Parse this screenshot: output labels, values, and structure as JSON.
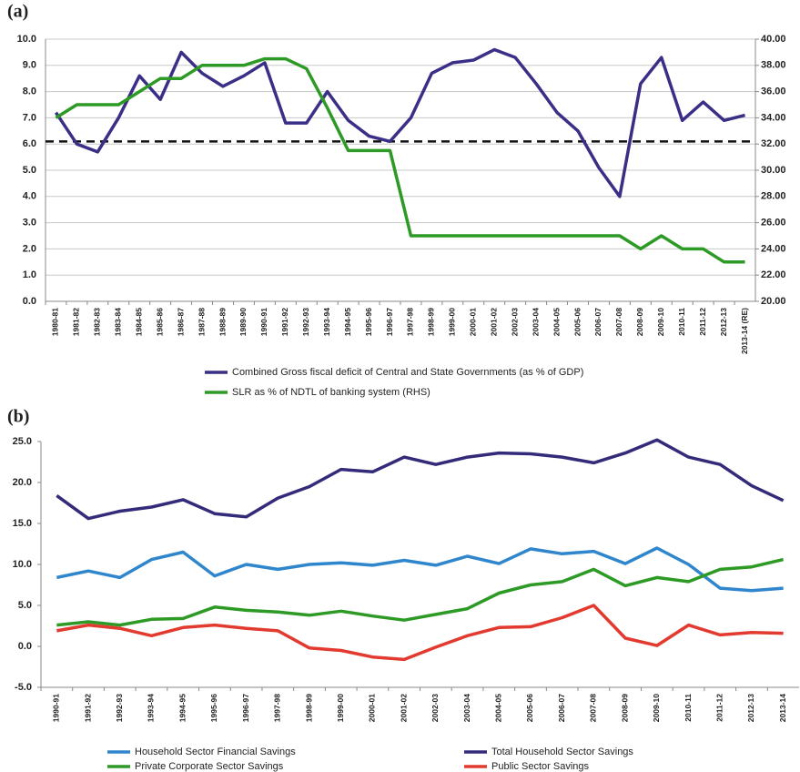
{
  "chart_data": [
    {
      "type": "line",
      "panel_label": "(a)",
      "categories": [
        "1980-81",
        "1981-82",
        "1982-83",
        "1983-84",
        "1984-85",
        "1985-86",
        "1986-87",
        "1987-88",
        "1988-89",
        "1989-90",
        "1990-91",
        "1991-92",
        "1992-93",
        "1993-94",
        "1994-95",
        "1995-96",
        "1996-97",
        "1997-98",
        "1998-99",
        "1999-00",
        "2000-01",
        "2001-02",
        "2002-03",
        "2003-04",
        "2004-05",
        "2005-06",
        "2006-07",
        "2007-08",
        "2008-09",
        "2009-10",
        "2010-11",
        "2011-12",
        "2012-13",
        "2013-14 (RE)"
      ],
      "series": [
        {
          "name": "Combined Gross fiscal deficit of Central and State Governments (as % of GDP)",
          "color": "#3a2f86",
          "values": [
            7.2,
            6.0,
            5.7,
            7.0,
            8.6,
            7.7,
            9.5,
            8.7,
            8.2,
            8.6,
            9.1,
            6.8,
            6.8,
            8.0,
            6.9,
            6.3,
            6.1,
            7.0,
            8.7,
            9.1,
            9.2,
            9.6,
            9.3,
            8.3,
            7.2,
            6.5,
            5.1,
            4.0,
            8.3,
            9.3,
            6.9,
            7.6,
            6.9,
            7.1
          ]
        },
        {
          "name": "SLR as % of NDTL of banking system (RHS)",
          "color": "#2e9a26",
          "axis": "y2",
          "values": [
            34,
            35,
            35,
            35,
            36,
            37,
            37,
            38,
            38,
            38,
            38.5,
            38.5,
            37.75,
            34.75,
            31.5,
            31.5,
            31.5,
            25,
            25,
            25,
            25,
            25,
            25,
            25,
            25,
            25,
            25,
            25,
            24,
            25,
            24,
            24,
            23,
            23
          ]
        }
      ],
      "hline": 6.1,
      "ylim": [
        0,
        10
      ],
      "yticks": [
        {
          "value": 0,
          "label": "0.0"
        },
        {
          "value": 1,
          "label": "1.0"
        },
        {
          "value": 2,
          "label": "2.0"
        },
        {
          "value": 3,
          "label": "3.0"
        },
        {
          "value": 4,
          "label": "4.0"
        },
        {
          "value": 5,
          "label": "5.0"
        },
        {
          "value": 6,
          "label": "6.0"
        },
        {
          "value": 7,
          "label": "7.0"
        },
        {
          "value": 8,
          "label": "8.0"
        },
        {
          "value": 9,
          "label": "9.0"
        },
        {
          "value": 10,
          "label": "10.0"
        }
      ],
      "y2lim": [
        20,
        40
      ],
      "y2ticks": [
        {
          "value": 20,
          "label": "20.00"
        },
        {
          "value": 22,
          "label": "22.00"
        },
        {
          "value": 24,
          "label": "24.00"
        },
        {
          "value": 26,
          "label": "26.00"
        },
        {
          "value": 28,
          "label": "28.00"
        },
        {
          "value": 30,
          "label": "30.00"
        },
        {
          "value": 32,
          "label": "32.00"
        },
        {
          "value": 34,
          "label": "34.00"
        },
        {
          "value": 36,
          "label": "36.00"
        },
        {
          "value": 38,
          "label": "38.00"
        },
        {
          "value": 40,
          "label": "40.00"
        }
      ],
      "grid": true
    },
    {
      "type": "line",
      "panel_label": "(b)",
      "categories": [
        "1990-91",
        "1991-92",
        "1992-93",
        "1993-94",
        "1994-95",
        "1995-96",
        "1996-97",
        "1997-98",
        "1998-99",
        "1999-00",
        "2000-01",
        "2001-02",
        "2002-03",
        "2003-04",
        "2004-05",
        "2005-06",
        "2006-07",
        "2007-08",
        "2008-09",
        "2009-10",
        "2010-11",
        "2011-12",
        "2012-13",
        "2013-14"
      ],
      "series": [
        {
          "name": "Household Sector Financial Savings",
          "color": "#2f86cc",
          "values": [
            8.4,
            9.2,
            8.4,
            10.6,
            11.5,
            8.6,
            10.0,
            9.4,
            10.0,
            10.2,
            9.9,
            10.5,
            9.9,
            11.0,
            10.1,
            11.9,
            11.3,
            11.6,
            10.1,
            12.0,
            10.0,
            7.1,
            6.8,
            7.1
          ]
        },
        {
          "name": "Total Household Sector Savings",
          "color": "#332a7a",
          "values": [
            18.4,
            15.6,
            16.5,
            17.0,
            17.9,
            16.2,
            15.8,
            18.1,
            19.5,
            21.6,
            21.3,
            23.1,
            22.2,
            23.1,
            23.6,
            23.5,
            23.1,
            22.4,
            23.6,
            25.2,
            23.1,
            22.2,
            19.6,
            17.8
          ]
        },
        {
          "name": "Private Corporate Sector Savings",
          "color": "#2e9a26",
          "values": [
            2.6,
            3.0,
            2.6,
            3.3,
            3.4,
            4.8,
            4.4,
            4.2,
            3.8,
            4.3,
            3.7,
            3.2,
            3.9,
            4.6,
            6.5,
            7.5,
            7.9,
            9.4,
            7.4,
            8.4,
            7.9,
            9.4,
            9.7,
            10.6
          ]
        },
        {
          "name": "Public Sector Savings",
          "color": "#e23a2e",
          "values": [
            1.9,
            2.6,
            2.2,
            1.3,
            2.3,
            2.6,
            2.2,
            1.9,
            -0.2,
            -0.5,
            -1.3,
            -1.6,
            -0.1,
            1.3,
            2.3,
            2.4,
            3.5,
            5.0,
            1.0,
            0.1,
            2.6,
            1.4,
            1.7,
            1.6
          ]
        }
      ],
      "ylim": [
        -5,
        25
      ],
      "yticks": [
        {
          "value": -5,
          "label": "-5.0"
        },
        {
          "value": 0,
          "label": "0.0"
        },
        {
          "value": 5,
          "label": "5.0"
        },
        {
          "value": 10,
          "label": "10.0"
        },
        {
          "value": 15,
          "label": "15.0"
        },
        {
          "value": 20,
          "label": "20.0"
        },
        {
          "value": 25,
          "label": "25.0"
        }
      ],
      "grid": false
    }
  ]
}
